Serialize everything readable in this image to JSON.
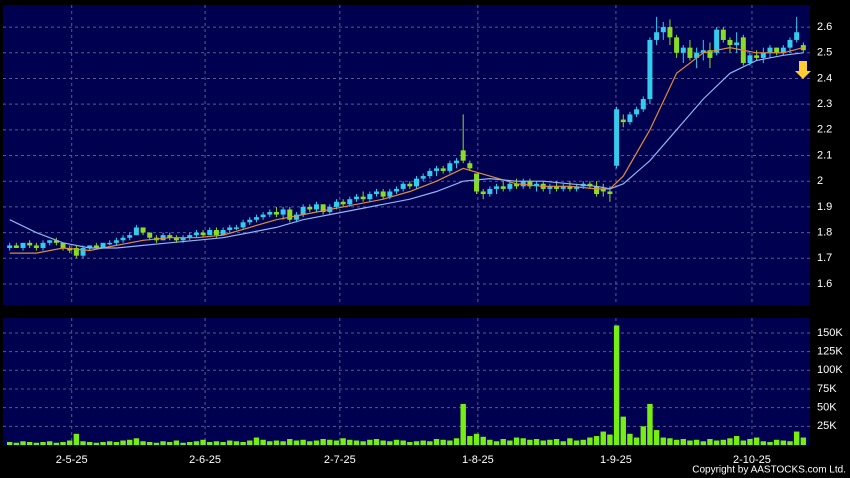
{
  "chart_data": [
    {
      "type": "candlestick",
      "up_color": "#33ccee",
      "down_color": "#88dd22",
      "x": [
        0,
        1,
        2,
        3,
        4,
        5,
        6,
        7,
        8,
        9,
        10,
        11,
        12,
        13,
        14,
        15,
        16,
        17,
        18,
        19,
        20,
        21,
        22,
        23,
        24,
        25,
        26,
        27,
        28,
        29,
        30,
        31,
        32,
        33,
        34,
        35,
        36,
        37,
        38,
        39,
        40,
        41,
        42,
        43,
        44,
        45,
        46,
        47,
        48,
        49,
        50,
        51,
        52,
        53,
        54,
        55,
        56,
        57,
        58,
        59,
        60,
        61,
        62,
        63,
        64,
        65,
        66,
        67,
        68,
        69,
        70,
        71,
        72,
        73,
        74,
        75,
        76,
        77,
        78,
        79,
        80,
        81,
        82,
        83,
        84,
        85,
        86,
        87,
        88,
        89,
        90,
        91,
        92,
        93,
        94,
        95,
        96,
        97,
        98,
        99,
        100,
        101,
        102,
        103,
        104,
        105,
        106,
        107,
        108,
        109,
        110,
        111,
        112,
        113,
        114,
        115,
        116,
        117,
        118,
        119
      ],
      "ohlc": [
        [
          1.74,
          1.76,
          1.73,
          1.75
        ],
        [
          1.75,
          1.76,
          1.74,
          1.74
        ],
        [
          1.74,
          1.76,
          1.73,
          1.76
        ],
        [
          1.76,
          1.77,
          1.74,
          1.75
        ],
        [
          1.75,
          1.76,
          1.73,
          1.74
        ],
        [
          1.74,
          1.77,
          1.73,
          1.76
        ],
        [
          1.76,
          1.77,
          1.75,
          1.77
        ],
        [
          1.77,
          1.78,
          1.75,
          1.76
        ],
        [
          1.76,
          1.76,
          1.73,
          1.74
        ],
        [
          1.74,
          1.75,
          1.72,
          1.73
        ],
        [
          1.74,
          1.75,
          1.7,
          1.71
        ],
        [
          1.71,
          1.75,
          1.7,
          1.74
        ],
        [
          1.74,
          1.75,
          1.73,
          1.75
        ],
        [
          1.75,
          1.76,
          1.74,
          1.74
        ],
        [
          1.74,
          1.76,
          1.74,
          1.76
        ],
        [
          1.76,
          1.77,
          1.75,
          1.76
        ],
        [
          1.76,
          1.78,
          1.75,
          1.77
        ],
        [
          1.77,
          1.79,
          1.76,
          1.78
        ],
        [
          1.78,
          1.8,
          1.77,
          1.79
        ],
        [
          1.79,
          1.83,
          1.79,
          1.82
        ],
        [
          1.82,
          1.82,
          1.79,
          1.8
        ],
        [
          1.8,
          1.8,
          1.77,
          1.78
        ],
        [
          1.78,
          1.79,
          1.76,
          1.77
        ],
        [
          1.77,
          1.8,
          1.77,
          1.79
        ],
        [
          1.79,
          1.8,
          1.77,
          1.78
        ],
        [
          1.78,
          1.79,
          1.76,
          1.77
        ],
        [
          1.77,
          1.79,
          1.76,
          1.78
        ],
        [
          1.78,
          1.8,
          1.77,
          1.79
        ],
        [
          1.79,
          1.81,
          1.78,
          1.8
        ],
        [
          1.8,
          1.81,
          1.78,
          1.79
        ],
        [
          1.79,
          1.82,
          1.79,
          1.81
        ],
        [
          1.81,
          1.82,
          1.78,
          1.79
        ],
        [
          1.79,
          1.82,
          1.79,
          1.81
        ],
        [
          1.81,
          1.83,
          1.8,
          1.82
        ],
        [
          1.82,
          1.83,
          1.81,
          1.82
        ],
        [
          1.82,
          1.85,
          1.81,
          1.84
        ],
        [
          1.84,
          1.86,
          1.83,
          1.85
        ],
        [
          1.85,
          1.87,
          1.84,
          1.86
        ],
        [
          1.86,
          1.88,
          1.85,
          1.87
        ],
        [
          1.87,
          1.89,
          1.86,
          1.88
        ],
        [
          1.88,
          1.9,
          1.86,
          1.87
        ],
        [
          1.87,
          1.9,
          1.85,
          1.89
        ],
        [
          1.89,
          1.9,
          1.84,
          1.85
        ],
        [
          1.85,
          1.88,
          1.84,
          1.87
        ],
        [
          1.87,
          1.91,
          1.86,
          1.9
        ],
        [
          1.9,
          1.91,
          1.88,
          1.89
        ],
        [
          1.89,
          1.92,
          1.88,
          1.91
        ],
        [
          1.91,
          1.91,
          1.87,
          1.88
        ],
        [
          1.88,
          1.91,
          1.87,
          1.9
        ],
        [
          1.9,
          1.93,
          1.89,
          1.92
        ],
        [
          1.92,
          1.93,
          1.9,
          1.91
        ],
        [
          1.91,
          1.94,
          1.9,
          1.93
        ],
        [
          1.93,
          1.95,
          1.92,
          1.94
        ],
        [
          1.94,
          1.96,
          1.92,
          1.93
        ],
        [
          1.93,
          1.96,
          1.92,
          1.95
        ],
        [
          1.95,
          1.97,
          1.94,
          1.96
        ],
        [
          1.96,
          1.97,
          1.93,
          1.94
        ],
        [
          1.94,
          1.97,
          1.93,
          1.96
        ],
        [
          1.96,
          1.98,
          1.95,
          1.97
        ],
        [
          1.97,
          2.0,
          1.96,
          1.99
        ],
        [
          1.99,
          2.0,
          1.97,
          1.98
        ],
        [
          1.98,
          2.02,
          1.97,
          2.01
        ],
        [
          2.01,
          2.03,
          2.0,
          2.02
        ],
        [
          2.02,
          2.05,
          2.01,
          2.04
        ],
        [
          2.04,
          2.06,
          2.02,
          2.05
        ],
        [
          2.05,
          2.06,
          2.03,
          2.04
        ],
        [
          2.04,
          2.08,
          2.03,
          2.07
        ],
        [
          2.07,
          2.09,
          2.05,
          2.08
        ],
        [
          2.12,
          2.26,
          2.07,
          2.08
        ],
        [
          2.07,
          2.08,
          2.04,
          2.05
        ],
        [
          2.03,
          2.03,
          1.95,
          1.96
        ],
        [
          1.96,
          1.97,
          1.93,
          1.95
        ],
        [
          1.95,
          1.98,
          1.94,
          1.97
        ],
        [
          1.97,
          1.99,
          1.95,
          1.98
        ],
        [
          1.98,
          2.0,
          1.96,
          1.97
        ],
        [
          1.97,
          2.0,
          1.96,
          1.99
        ],
        [
          1.99,
          2.01,
          1.97,
          1.98
        ],
        [
          1.98,
          2.01,
          1.97,
          2.0
        ],
        [
          2.0,
          2.01,
          1.97,
          1.98
        ],
        [
          1.98,
          2.0,
          1.96,
          1.99
        ],
        [
          1.99,
          2.0,
          1.96,
          1.97
        ],
        [
          1.97,
          1.99,
          1.95,
          1.98
        ],
        [
          1.98,
          2.0,
          1.96,
          1.97
        ],
        [
          1.97,
          1.99,
          1.96,
          1.98
        ],
        [
          1.98,
          2.0,
          1.96,
          1.97
        ],
        [
          1.97,
          1.99,
          1.96,
          1.98
        ],
        [
          1.98,
          2.0,
          1.97,
          1.99
        ],
        [
          1.99,
          2.0,
          1.97,
          1.98
        ],
        [
          1.98,
          2.0,
          1.94,
          1.95
        ],
        [
          1.97,
          1.99,
          1.94,
          1.96
        ],
        [
          1.96,
          1.98,
          1.92,
          1.95
        ],
        [
          2.06,
          2.29,
          2.05,
          2.28
        ],
        [
          2.24,
          2.26,
          2.21,
          2.23
        ],
        [
          2.23,
          2.27,
          2.22,
          2.26
        ],
        [
          2.26,
          2.29,
          2.25,
          2.28
        ],
        [
          2.28,
          2.33,
          2.27,
          2.32
        ],
        [
          2.32,
          2.56,
          2.3,
          2.55
        ],
        [
          2.55,
          2.64,
          2.53,
          2.58
        ],
        [
          2.58,
          2.62,
          2.55,
          2.6
        ],
        [
          2.6,
          2.63,
          2.53,
          2.56
        ],
        [
          2.56,
          2.57,
          2.48,
          2.5
        ],
        [
          2.5,
          2.53,
          2.46,
          2.52
        ],
        [
          2.52,
          2.55,
          2.47,
          2.48
        ],
        [
          2.48,
          2.52,
          2.44,
          2.5
        ],
        [
          2.5,
          2.55,
          2.47,
          2.51
        ],
        [
          2.51,
          2.54,
          2.44,
          2.48
        ],
        [
          2.5,
          2.6,
          2.49,
          2.59
        ],
        [
          2.59,
          2.6,
          2.54,
          2.55
        ],
        [
          2.55,
          2.56,
          2.5,
          2.53
        ],
        [
          2.53,
          2.58,
          2.5,
          2.54
        ],
        [
          2.56,
          2.57,
          2.45,
          2.46
        ],
        [
          2.46,
          2.5,
          2.45,
          2.49
        ],
        [
          2.49,
          2.51,
          2.47,
          2.48
        ],
        [
          2.48,
          2.52,
          2.46,
          2.5
        ],
        [
          2.5,
          2.53,
          2.48,
          2.52
        ],
        [
          2.52,
          2.52,
          2.49,
          2.5
        ],
        [
          2.5,
          2.53,
          2.49,
          2.52
        ],
        [
          2.52,
          2.56,
          2.5,
          2.55
        ],
        [
          2.55,
          2.64,
          2.54,
          2.58
        ],
        [
          2.53,
          2.54,
          2.5,
          2.51
        ]
      ],
      "lines": [
        {
          "color": "#e08a3c",
          "x": [
            0,
            4,
            8,
            12,
            16,
            20,
            24,
            28,
            32,
            36,
            40,
            44,
            48,
            52,
            56,
            60,
            64,
            68,
            72,
            76,
            80,
            84,
            88,
            90,
            92,
            96,
            100,
            104,
            108,
            112,
            116,
            119
          ],
          "values": [
            1.72,
            1.72,
            1.74,
            1.73,
            1.75,
            1.77,
            1.78,
            1.78,
            1.79,
            1.82,
            1.85,
            1.87,
            1.89,
            1.91,
            1.93,
            1.96,
            2.0,
            2.05,
            2.02,
            1.99,
            1.98,
            1.98,
            1.97,
            1.97,
            2.02,
            2.2,
            2.42,
            2.5,
            2.52,
            2.5,
            2.5,
            2.52
          ]
        },
        {
          "color": "#8fb4f0",
          "x": [
            0,
            4,
            8,
            12,
            16,
            20,
            24,
            28,
            32,
            36,
            40,
            44,
            48,
            52,
            56,
            60,
            64,
            68,
            72,
            76,
            80,
            84,
            88,
            90,
            92,
            96,
            100,
            104,
            108,
            112,
            116,
            119
          ],
          "values": [
            1.85,
            1.8,
            1.76,
            1.74,
            1.74,
            1.75,
            1.76,
            1.77,
            1.78,
            1.8,
            1.82,
            1.85,
            1.87,
            1.89,
            1.91,
            1.93,
            1.96,
            2.0,
            2.01,
            2.0,
            2.0,
            1.99,
            1.98,
            1.97,
            1.99,
            2.08,
            2.2,
            2.32,
            2.42,
            2.47,
            2.49,
            2.5
          ]
        }
      ],
      "xlim": [
        -1,
        120
      ],
      "ylim": [
        1.518,
        2.686
      ],
      "yticks": [
        1.6,
        1.7,
        1.8,
        1.9,
        2,
        2.1,
        2.2,
        2.3,
        2.4,
        2.5,
        2.6
      ],
      "grid": true
    },
    {
      "type": "bar",
      "color": "#77ee11",
      "values": [
        4000,
        3000,
        5000,
        4000,
        3000,
        4000,
        5000,
        3000,
        4000,
        6000,
        15000,
        5000,
        4000,
        3000,
        4000,
        5000,
        4000,
        6000,
        7000,
        9000,
        5000,
        4000,
        3000,
        5000,
        4000,
        6000,
        3000,
        4000,
        5000,
        7000,
        4000,
        5000,
        4000,
        6000,
        5000,
        4000,
        6000,
        10000,
        7000,
        5000,
        6000,
        5000,
        8000,
        6000,
        7000,
        5000,
        6000,
        8000,
        7000,
        6000,
        9000,
        7000,
        6000,
        5000,
        7000,
        8000,
        6000,
        5000,
        7000,
        6000,
        4000,
        5000,
        6000,
        5000,
        8000,
        7000,
        6000,
        9000,
        55000,
        12000,
        15000,
        11000,
        7000,
        5000,
        8000,
        6000,
        10000,
        9000,
        7000,
        8000,
        6000,
        7000,
        8000,
        5000,
        9000,
        6000,
        7000,
        10000,
        12000,
        18000,
        14000,
        160000,
        38000,
        15000,
        10000,
        25000,
        55000,
        20000,
        10000,
        9000,
        7000,
        8000,
        6000,
        7000,
        5000,
        8000,
        6000,
        7000,
        9000,
        12000,
        6000,
        8000,
        10000,
        5000,
        4000,
        7000,
        6000,
        5000,
        18000,
        10000
      ],
      "xlim": [
        -1,
        120
      ],
      "ylim": [
        0,
        170000
      ],
      "xticks": [
        {
          "value": 9.3,
          "label": "2-5-25"
        },
        {
          "value": 29.3,
          "label": "2-6-25"
        },
        {
          "value": 49.5,
          "label": "2-7-25"
        },
        {
          "value": 70.2,
          "label": "1-8-25"
        },
        {
          "value": 90.9,
          "label": "1-9-25"
        },
        {
          "value": 111.3,
          "label": "2-10-25"
        }
      ],
      "yticks": [
        {
          "value": 25000,
          "label": "25K"
        },
        {
          "value": 50000,
          "label": "50K"
        },
        {
          "value": 75000,
          "label": "75K"
        },
        {
          "value": 100000,
          "label": "100K"
        },
        {
          "value": 125000,
          "label": "125K"
        },
        {
          "value": 150000,
          "label": "150K"
        }
      ],
      "grid": true
    }
  ],
  "copyright": "Copyright by AASTOCKS.com Ltd."
}
